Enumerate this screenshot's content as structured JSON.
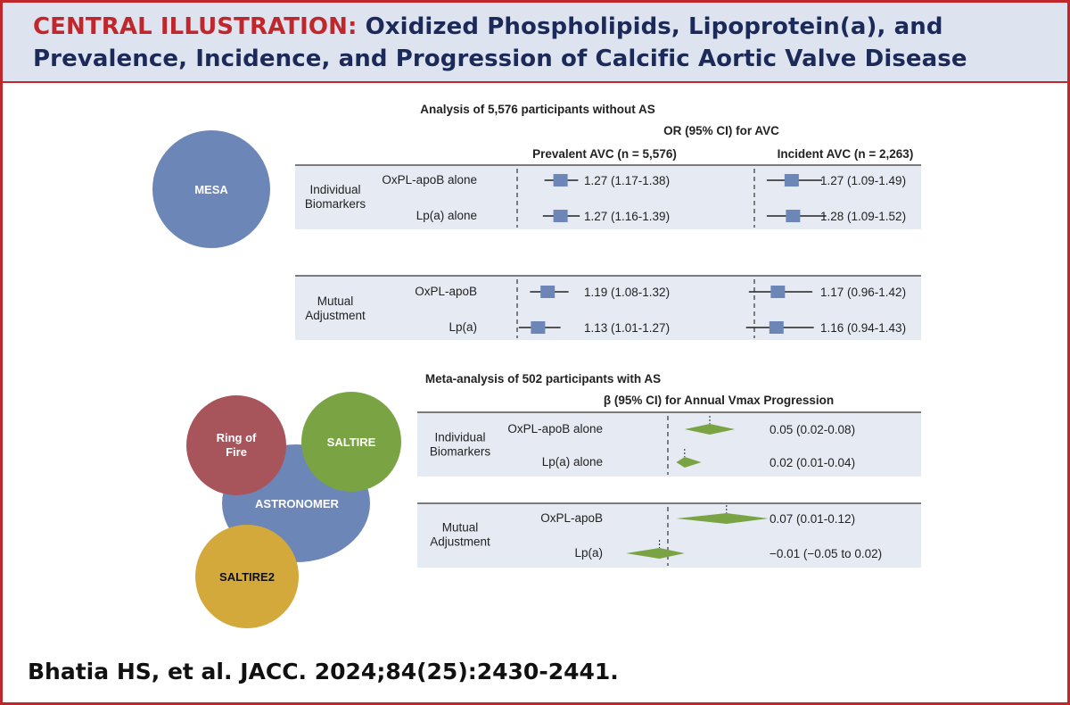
{
  "header": {
    "title_lead": "CENTRAL ILLUSTRATION:",
    "title_line1": "Oxidized Phospholipids, Lipoprotein(a), and",
    "title_line2": "Prevalence, Incidence, and Progression of Calcific Aortic Valve Disease"
  },
  "citation": "Bhatia HS, et al. JACC. 2024;84(25):2430-2441.",
  "colors": {
    "accent_red": "#c0272d",
    "navy": "#1c2a5a",
    "header_bg": "#dde4f0",
    "panel_bg": "#e6ebf3",
    "or_marker": "#6d86b8",
    "diamond": "#7aa444",
    "circle_mesa": "#6d86b8",
    "circle_ring_of_fire": "#a8545b",
    "circle_saltire": "#7aa444",
    "circle_astronomer": "#6d86b8",
    "circle_saltire2": "#d4a93c"
  },
  "cohorts": {
    "mesa": "MESA",
    "ring_of_fire": [
      "Ring of",
      "Fire"
    ],
    "saltire": "SALTIRE",
    "astronomer": "ASTRONOMER",
    "saltire2": "SALTIRE2"
  },
  "chart_data": [
    {
      "type": "forest",
      "title": "Analysis of 5,576 participants without AS",
      "measure": "OR (95% CI) for AVC",
      "reference_value": 1,
      "columns": [
        "Prevalent AVC (n = 5,576)",
        "Incident AVC (n = 2,263)"
      ],
      "groups": [
        {
          "name": [
            "Individual",
            "Biomarkers"
          ],
          "rows": [
            {
              "label": "OxPL-apoB alone",
              "values": [
                {
                  "estimate": 1.27,
                  "ci": [
                    1.17,
                    1.38
                  ],
                  "text": "1.27 (1.17-1.38)"
                },
                {
                  "estimate": 1.27,
                  "ci": [
                    1.09,
                    1.49
                  ],
                  "text": "1.27 (1.09-1.49)"
                }
              ]
            },
            {
              "label": "Lp(a) alone",
              "values": [
                {
                  "estimate": 1.27,
                  "ci": [
                    1.16,
                    1.39
                  ],
                  "text": "1.27 (1.16-1.39)"
                },
                {
                  "estimate": 1.28,
                  "ci": [
                    1.09,
                    1.52
                  ],
                  "text": "1.28 (1.09-1.52)"
                }
              ]
            }
          ]
        },
        {
          "name": [
            "Mutual",
            "Adjustment"
          ],
          "rows": [
            {
              "label": "OxPL-apoB",
              "values": [
                {
                  "estimate": 1.19,
                  "ci": [
                    1.08,
                    1.32
                  ],
                  "text": "1.19 (1.08-1.32)"
                },
                {
                  "estimate": 1.17,
                  "ci": [
                    0.96,
                    1.42
                  ],
                  "text": "1.17 (0.96-1.42)"
                }
              ]
            },
            {
              "label": "Lp(a)",
              "values": [
                {
                  "estimate": 1.13,
                  "ci": [
                    1.01,
                    1.27
                  ],
                  "text": "1.13 (1.01-1.27)"
                },
                {
                  "estimate": 1.16,
                  "ci": [
                    0.94,
                    1.43
                  ],
                  "text": "1.16 (0.94-1.43)"
                }
              ]
            }
          ]
        }
      ]
    },
    {
      "type": "forest",
      "title": "Meta-analysis of 502 participants with AS",
      "measure": "β (95% CI) for Annual Vmax Progression",
      "reference_value": 0,
      "groups": [
        {
          "name": [
            "Individual",
            "Biomarkers"
          ],
          "rows": [
            {
              "label": "OxPL-apoB alone",
              "estimate": 0.05,
              "ci": [
                0.02,
                0.08
              ],
              "text": "0.05 (0.02-0.08)"
            },
            {
              "label": "Lp(a) alone",
              "estimate": 0.02,
              "ci": [
                0.01,
                0.04
              ],
              "text": "0.02 (0.01-0.04)"
            }
          ]
        },
        {
          "name": [
            "Mutual",
            "Adjustment"
          ],
          "rows": [
            {
              "label": "OxPL-apoB",
              "estimate": 0.07,
              "ci": [
                0.01,
                0.12
              ],
              "text": "0.07 (0.01-0.12)"
            },
            {
              "label": "Lp(a)",
              "estimate": -0.01,
              "ci": [
                -0.05,
                0.02
              ],
              "text": "−0.01 (−0.05 to 0.02)"
            }
          ]
        }
      ]
    }
  ]
}
